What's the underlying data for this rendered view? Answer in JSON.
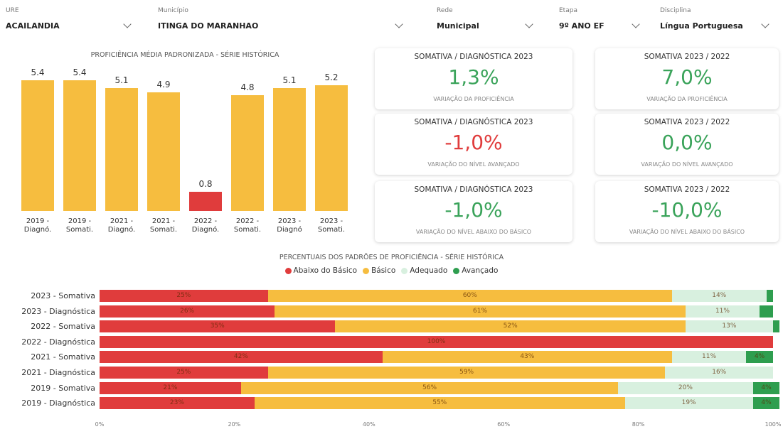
{
  "filters": [
    {
      "label": "URE",
      "value": "ACAILANDIA"
    },
    {
      "label": "Município",
      "value": "ITINGA DO MARANHAO"
    },
    {
      "label": "Rede",
      "value": "Municipal"
    },
    {
      "label": "Etapa",
      "value": "9º ANO EF"
    },
    {
      "label": "Disciplina",
      "value": "Língua Portuguesa"
    }
  ],
  "kpis": [
    {
      "title": "SOMATIVA / DIAGNÓSTICA 2023",
      "value": "1,3%",
      "caption": "VARIAÇÃO DA PROFICIÊNCIA",
      "color": "#3aa35a"
    },
    {
      "title": "SOMATIVA 2023 / 2022",
      "value": "7,0%",
      "caption": "VARIAÇÃO DA PROFICIÊNCIA",
      "color": "#3aa35a"
    },
    {
      "title": "SOMATIVA / DIAGNÓSTICA 2023",
      "value": "-1,0%",
      "caption": "VARIAÇÃO DO NÍVEL AVANÇADO",
      "color": "#e03c3c"
    },
    {
      "title": "SOMATIVA 2023 / 2022",
      "value": "0,0%",
      "caption": "VARIAÇÃO DO NÍVEL AVANÇADO",
      "color": "#3aa35a"
    },
    {
      "title": "SOMATIVA / DIAGNÓSTICA 2023",
      "value": "-1,0%",
      "caption": "VARIAÇÃO DO NÍVEL ABAIXO DO BÁSICO",
      "color": "#3aa35a"
    },
    {
      "title": "SOMATIVA 2023 / 2022",
      "value": "-10,0%",
      "caption": "VARIAÇÃO DO NÍVEL ABAIXO DO BÁSICO",
      "color": "#3aa35a"
    }
  ],
  "chart_data": [
    {
      "type": "bar",
      "title": "PROFICIÊNCIA MÉDIA PADRONIZADA - SÉRIE HISTÓRICA",
      "categories": [
        "2019 - Diagnó.",
        "2019 - Somati.",
        "2021 - Diagnó.",
        "2021 - Somati.",
        "2022 - Diagnó.",
        "2022 - Somati.",
        "2023 - Diagnó",
        "2023 - Somati."
      ],
      "values": [
        5.4,
        5.4,
        5.1,
        4.9,
        0.8,
        4.8,
        5.1,
        5.2
      ],
      "colors": [
        "#f6bd3f",
        "#f6bd3f",
        "#f6bd3f",
        "#f6bd3f",
        "#e03c3c",
        "#f6bd3f",
        "#f6bd3f",
        "#f6bd3f"
      ]
    },
    {
      "type": "stacked-barh",
      "title": "PERCENTUAIS DOS PADRÕES DE PROFICIÊNCIA - SÉRIE HISTÓRICA",
      "categories": [
        "2023 - Somativa",
        "2023 - Diagnóstica",
        "2022 - Somativa",
        "2022 - Diagnóstica",
        "2021 - Somativa",
        "2021 - Diagnóstica",
        "2019 - Somativa",
        "2019 - Diagnóstica"
      ],
      "series": [
        {
          "name": "Abaixo do Básico",
          "color": "#e03c3c",
          "values": [
            25,
            26,
            35,
            100,
            42,
            25,
            21,
            23
          ],
          "value_labels": [
            "25%",
            "26%",
            "35%",
            "100%",
            "42%",
            "25%",
            "21%",
            "23%"
          ]
        },
        {
          "name": "Básico",
          "color": "#f6bd3f",
          "values": [
            60,
            61,
            52,
            0,
            43,
            59,
            56,
            55
          ],
          "value_labels": [
            "60%",
            "61%",
            "52%",
            null,
            "43%",
            "59%",
            "56%",
            "55%"
          ]
        },
        {
          "name": "Adequado",
          "color": "#d8f0df",
          "values": [
            14,
            11,
            13,
            0,
            11,
            16,
            20,
            19
          ],
          "value_labels": [
            "14%",
            "11%",
            "13%",
            null,
            "11%",
            "16%",
            "20%",
            "19%"
          ]
        },
        {
          "name": "Avançado",
          "color": "#2e9e4f",
          "values": [
            1,
            2,
            1,
            0,
            4,
            0,
            4,
            4
          ],
          "value_labels": [
            null,
            null,
            null,
            null,
            "4%",
            null,
            "4%",
            "4%"
          ]
        }
      ],
      "xlim": [
        0,
        100
      ],
      "xticks": [
        {
          "value": 0,
          "label": "0%"
        },
        {
          "value": 20,
          "label": "20%"
        },
        {
          "value": 40,
          "label": "40%"
        },
        {
          "value": 60,
          "label": "60%"
        },
        {
          "value": 80,
          "label": "80%"
        },
        {
          "value": 100,
          "label": "100%"
        }
      ],
      "legend": "top"
    }
  ]
}
